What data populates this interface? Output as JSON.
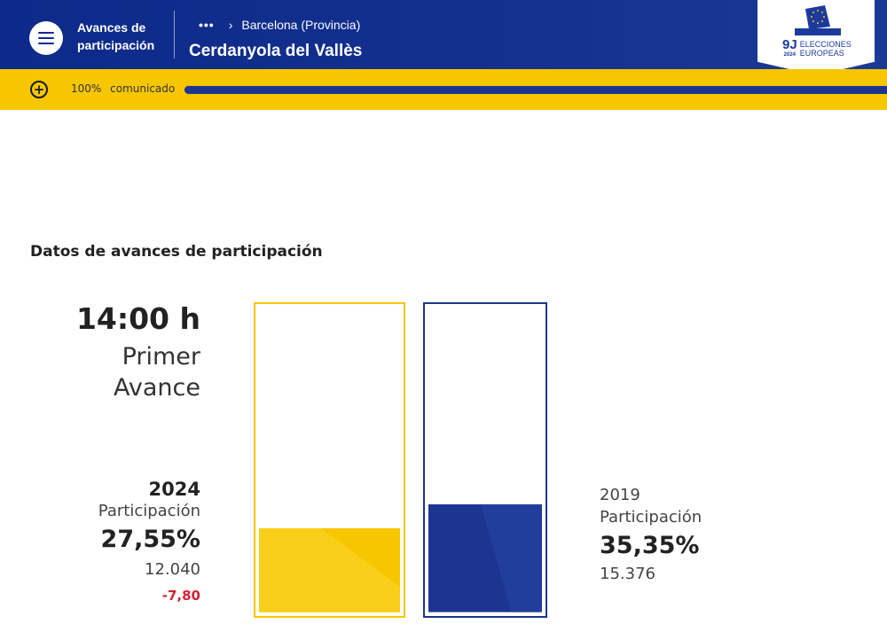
{
  "header": {
    "app_title": "Avances de participación",
    "breadcrumb_parent": "Barcelona (Provincia)",
    "place": "Cerdanyola del Vallès",
    "logo": {
      "mark": "9J",
      "year": "2024",
      "line1": "ELECCIONES",
      "line2": "EUROPEAS"
    }
  },
  "progress": {
    "percent_label": "100%",
    "status_label": "comunicado",
    "value": 100
  },
  "section_title": "Datos de avances de participación",
  "avance": {
    "time": "14:00 h",
    "name_line1": "Primer",
    "name_line2": "Avance"
  },
  "current": {
    "year": "2024",
    "label": "Participación",
    "percent": "27,55%",
    "count": "12.040",
    "diff": "-7,80",
    "value": 27.55
  },
  "previous": {
    "year": "2019",
    "label": "Participación",
    "percent": "35,35%",
    "count": "15.376",
    "value": 35.35
  },
  "colors": {
    "navy": "#1b3591",
    "yellow": "#f6c600",
    "negative": "#d42234"
  },
  "icons": {
    "menu": "hamburger-icon",
    "more": "ellipsis-icon",
    "separator": "chevron-right-icon",
    "expand": "plus-circle-icon"
  }
}
